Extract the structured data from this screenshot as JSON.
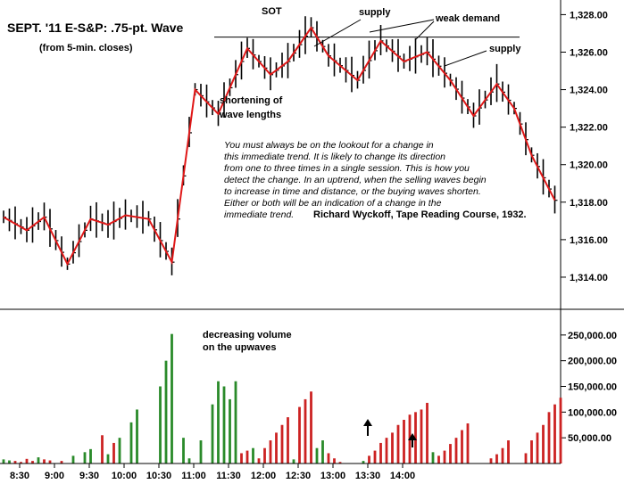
{
  "chart_data": {
    "type": "bar",
    "title": "SEPT. '11 E-S&P:  .75-pt. Wave",
    "subtitle": "(from 5-min. closes)",
    "price_panel": {
      "yticks": [
        "1,328.00",
        "1,326.00",
        "1,324.00",
        "1,322.00",
        "1,320.00",
        "1,318.00",
        "1,316.00",
        "1,314.00"
      ],
      "ytick_values": [
        1328,
        1326,
        1324,
        1322,
        1320,
        1318,
        1316,
        1314
      ],
      "ylim": [
        1313,
        1328.4
      ],
      "resistance_level": 1326.8,
      "wave_line": {
        "x_bar_index": [
          0,
          4,
          7,
          11,
          15,
          18,
          21,
          25,
          29,
          33,
          37,
          40,
          42,
          46,
          49,
          53,
          56,
          61,
          65,
          69,
          73,
          77,
          81,
          85,
          88,
          91,
          95
        ],
        "y": [
          1317.2,
          1316.5,
          1317.2,
          1314.7,
          1317.1,
          1316.8,
          1317.3,
          1317.1,
          1314.8,
          1324.0,
          1322.7,
          1324.8,
          1326.2,
          1324.8,
          1325.5,
          1327.3,
          1325.8,
          1324.5,
          1326.6,
          1325.5,
          1326.0,
          1324.5,
          1322.6,
          1324.3,
          1323.0,
          1320.5,
          1318.1
        ]
      }
    },
    "volume_panel": {
      "yticks": [
        "250,000.00",
        "200,000.00",
        "150,000.00",
        "100,000.00",
        "50,000.00"
      ],
      "ytick_values": [
        250000,
        200000,
        150000,
        100000,
        50000
      ],
      "ylim": [
        0,
        300000
      ],
      "series": [
        {
          "color": "#2a8a2a",
          "values": [
            8000,
            6000,
            0,
            0,
            0,
            0,
            12000,
            0,
            0,
            0,
            0,
            0,
            15000,
            0,
            22000,
            28000,
            0,
            0,
            18000,
            0,
            50000,
            0,
            80000,
            105000,
            0,
            0,
            0,
            150000,
            200000,
            252000,
            0,
            50000,
            10000,
            0,
            45000,
            0,
            115000,
            160000,
            150000,
            125000,
            160000,
            0,
            0,
            30000,
            0,
            0,
            0,
            0,
            0,
            0,
            8000,
            0,
            0,
            0,
            30000,
            45000,
            0,
            0,
            0,
            0,
            0,
            0,
            5000,
            0,
            0,
            0,
            0,
            0,
            0,
            0,
            0,
            0,
            0,
            0,
            22000,
            0,
            0,
            0,
            0,
            0,
            0,
            0,
            0,
            0,
            0,
            0,
            0,
            0,
            0,
            0,
            0,
            0,
            0,
            0,
            0,
            0,
            0
          ]
        },
        {
          "color": "#cc2222",
          "values": [
            0,
            0,
            5000,
            3000,
            9000,
            5000,
            0,
            8000,
            6000,
            0,
            5000,
            0,
            0,
            0,
            0,
            0,
            0,
            55000,
            0,
            40000,
            0,
            0,
            0,
            0,
            0,
            0,
            0,
            0,
            0,
            0,
            0,
            0,
            0,
            0,
            0,
            0,
            0,
            0,
            0,
            0,
            0,
            20000,
            25000,
            0,
            10000,
            30000,
            45000,
            60000,
            75000,
            90000,
            0,
            110000,
            125000,
            140000,
            0,
            0,
            20000,
            10000,
            3000,
            0,
            0,
            0,
            0,
            15000,
            25000,
            40000,
            50000,
            60000,
            75000,
            85000,
            95000,
            100000,
            105000,
            118000,
            0,
            15000,
            25000,
            38000,
            50000,
            65000,
            78000,
            0,
            0,
            0,
            10000,
            18000,
            30000,
            45000,
            0,
            0,
            20000,
            45000,
            60000,
            75000,
            100000,
            115000,
            128000
          ]
        }
      ]
    },
    "xticks": [
      "8:30",
      "9:00",
      "9:30",
      "10:00",
      "10:30",
      "11:00",
      "11:30",
      "12:00",
      "12:30",
      "13:00",
      "13:30",
      "14:00"
    ],
    "xtick_bar_index": [
      0,
      6,
      12,
      18,
      24,
      30,
      36,
      42,
      48,
      54,
      60,
      66
    ],
    "annotations": {
      "sot": "SOT",
      "supply1": "supply",
      "weak_demand": "weak demand",
      "supply2": "supply",
      "shortening_1": "shortening of",
      "shortening_2": "wave lengths",
      "volume_note_1": "decreasing volume",
      "volume_note_2": "on the upwaves",
      "quote_lines": [
        "You must always be on the lookout for a change in",
        "this immediate trend. It is likely to change its direction",
        "from one to three times in a single session. This is how you",
        "detect the change. In an uptrend, when the selling waves begin",
        "to increase in time and distance, or the buying waves shorten.",
        "Either or both will be an indication of a change in the",
        "immediate trend."
      ],
      "attribution": "Richard Wyckoff, Tape Reading Course, 1932."
    },
    "grid": false,
    "legend": "none"
  }
}
